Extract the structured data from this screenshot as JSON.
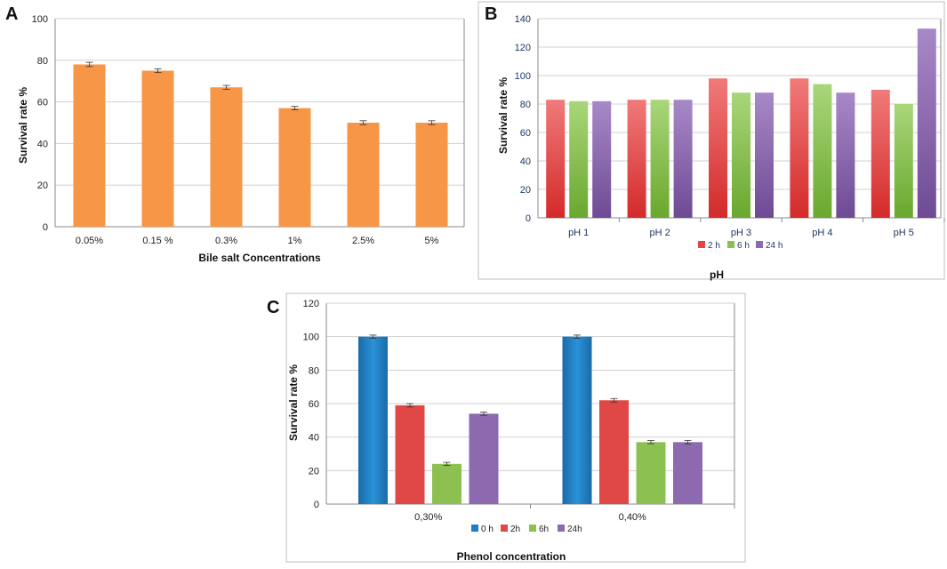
{
  "chart_data": [
    {
      "id": "A",
      "type": "bar",
      "panel_label": "A",
      "categories": [
        "0.05%",
        "0.15 %",
        "0.3%",
        "1%",
        "2.5%",
        "5%"
      ],
      "series": [
        {
          "name": "Survival rate",
          "values": [
            78,
            75,
            67,
            57,
            50,
            50
          ],
          "color": "#f79646"
        }
      ],
      "error": [
        0.6,
        0.5,
        0.5,
        0.4,
        0.5,
        0.5
      ],
      "yticks": [
        "0",
        "20",
        "40",
        "60",
        "80",
        "100"
      ],
      "ylim": [
        0,
        100
      ],
      "xlabel": "Bile salt Concentrations",
      "ylabel": "Survival rate %",
      "legend": "none"
    },
    {
      "id": "B",
      "type": "bar",
      "panel_label": "B",
      "categories": [
        "pH 1",
        "pH 2",
        "pH 3",
        "pH 4",
        "pH 5"
      ],
      "series": [
        {
          "name": "2 h",
          "values": [
            83,
            83,
            98,
            98,
            90
          ],
          "color": "#e04848"
        },
        {
          "name": "6 h",
          "values": [
            82,
            83,
            88,
            94,
            80
          ],
          "color": "#8cc152"
        },
        {
          "name": "24 h",
          "values": [
            82,
            83,
            88,
            88,
            133
          ],
          "color": "#8d6ab0"
        }
      ],
      "yticks": [
        "0",
        "20",
        "40",
        "60",
        "80",
        "100",
        "120",
        "140"
      ],
      "ylim": [
        0,
        140
      ],
      "xlabel": "pH",
      "ylabel": "Survival rate %",
      "legend": "bottom"
    },
    {
      "id": "C",
      "type": "bar",
      "panel_label": "C",
      "categories": [
        "0,30%",
        "0,40%"
      ],
      "series": [
        {
          "name": "0 h",
          "values": [
            100,
            100
          ],
          "color": "#1f7ec2"
        },
        {
          "name": "2h",
          "values": [
            59,
            62
          ],
          "color": "#e04848"
        },
        {
          "name": "6h",
          "values": [
            24,
            37
          ],
          "color": "#8cc152"
        },
        {
          "name": "24h",
          "values": [
            54,
            37
          ],
          "color": "#8d6ab0"
        }
      ],
      "error": [
        0.4,
        0.5,
        0.4,
        0.5
      ],
      "yticks": [
        "0",
        "20",
        "40",
        "60",
        "80",
        "100",
        "120"
      ],
      "ylim": [
        0,
        120
      ],
      "xlabel": "Phenol concentration",
      "ylabel": "Survival rate %",
      "legend": "bottom"
    }
  ]
}
